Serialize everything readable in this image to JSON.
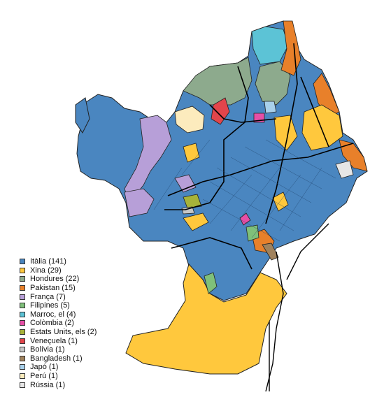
{
  "legend": [
    {
      "label": "Itàlia (141)",
      "color": "#4a86c0"
    },
    {
      "label": "Xina (29)",
      "color": "#ffc83d"
    },
    {
      "label": "Hondures (22)",
      "color": "#8daa8d"
    },
    {
      "label": "Pakistan (15)",
      "color": "#e8802a"
    },
    {
      "label": "França (7)",
      "color": "#b79fd8"
    },
    {
      "label": "Filipines (5)",
      "color": "#7fc07a"
    },
    {
      "label": "Marroc, el (4)",
      "color": "#5cc3d6"
    },
    {
      "label": "Colòmbia (2)",
      "color": "#e64fa6"
    },
    {
      "label": "Estats Units, els (2)",
      "color": "#a7b33a"
    },
    {
      "label": "Veneçuela (1)",
      "color": "#e2454b"
    },
    {
      "label": "Bolívia (1)",
      "color": "#c7c7c7"
    },
    {
      "label": "Bangladesh (1)",
      "color": "#a0825d"
    },
    {
      "label": "Japó (1)",
      "color": "#a8d0ea"
    },
    {
      "label": "Perú (1)",
      "color": "#fcebbd"
    },
    {
      "label": "Rússia (1)",
      "color": "#e6e6e6"
    }
  ]
}
